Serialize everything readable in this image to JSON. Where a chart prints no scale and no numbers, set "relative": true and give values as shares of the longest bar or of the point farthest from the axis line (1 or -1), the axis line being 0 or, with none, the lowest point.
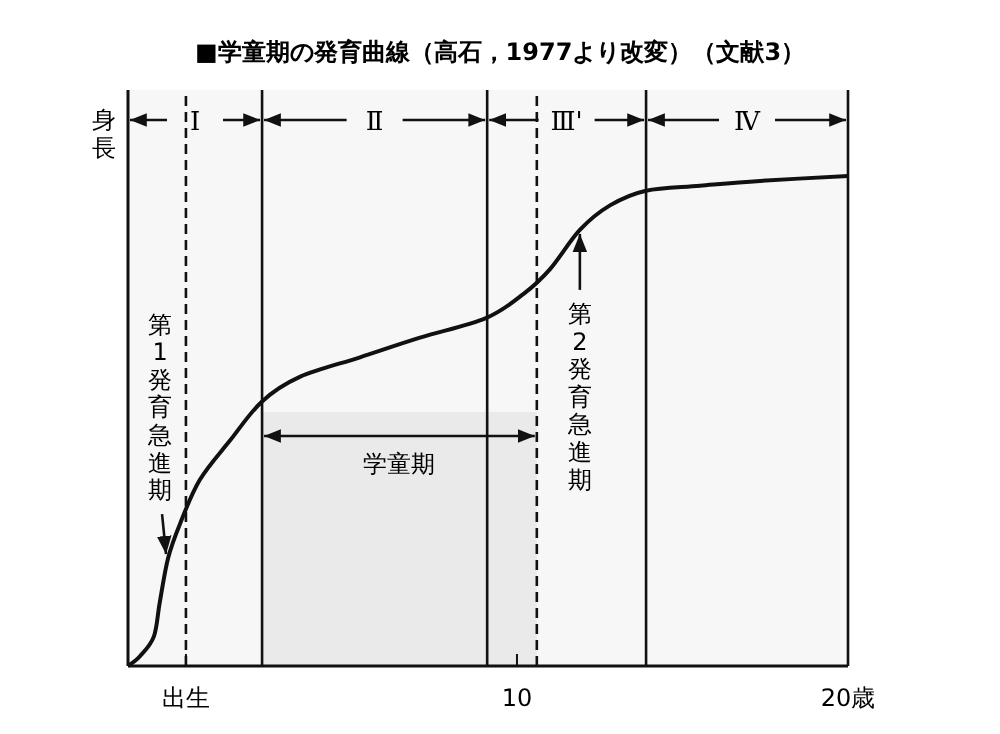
{
  "chart_data": {
    "type": "line",
    "relative": true,
    "title": "■学童期の発育曲線（高石，1977より改変）（文献3）",
    "ylabel": "身長",
    "xlim": [
      -1.75,
      20
    ],
    "xticks": [
      {
        "value": 0,
        "label": "出生"
      },
      10,
      {
        "value": 20,
        "label": "20歳"
      }
    ],
    "series": [
      {
        "color": "#111111",
        "x": [
          -1.75,
          -1.39,
          -0.97,
          -0.79,
          -0.54,
          -0.18,
          0.42,
          1.33,
          2.3,
          3.44,
          5.26,
          7.07,
          9.06,
          10.21,
          11.0,
          11.9,
          12.81,
          13.9,
          15.53,
          17.34,
          20
        ],
        "values": [
          0,
          0.02,
          0.06,
          0.13,
          0.22,
          0.29,
          0.38,
          0.46,
          0.54,
          0.59,
          0.63,
          0.67,
          0.71,
          0.76,
          0.81,
          0.89,
          0.94,
          0.97,
          0.98,
          0.99,
          1.0
        ]
      }
    ],
    "ref_lines": [
      {
        "axis": "x",
        "value": 2.3,
        "line_style": "solid"
      },
      {
        "axis": "x",
        "value": 9.1,
        "line_style": "solid"
      },
      {
        "axis": "x",
        "value": 13.9,
        "line_style": "solid"
      },
      {
        "axis": "x",
        "value": 20,
        "line_style": "solid"
      },
      {
        "axis": "x",
        "value": 0,
        "line_style": "dashed"
      },
      {
        "axis": "x",
        "value": 10.6,
        "line_style": "dashed"
      }
    ],
    "bands": [
      {
        "axis": "x",
        "from": -1.75,
        "to": 2.3,
        "label": "Ⅰ",
        "color": "#f0f0f0"
      },
      {
        "axis": "x",
        "from": 2.3,
        "to": 9.1,
        "label": "Ⅱ",
        "color": "#f0f0f0"
      },
      {
        "axis": "x",
        "from": 9.1,
        "to": 13.9,
        "label": "Ⅲ'",
        "color": "#f0f0f0"
      },
      {
        "axis": "x",
        "from": 13.9,
        "to": 20,
        "label": "Ⅳ",
        "color": "#f0f0f0"
      },
      {
        "axis": "x",
        "from": 2.3,
        "to": 10.6,
        "label": "学童期",
        "color": "#e4e4e4"
      }
    ],
    "annotations": [
      {
        "text": "第1発育急進期",
        "x": -0.54,
        "y": 0.22
      },
      {
        "text": "第2発育急進期",
        "x": 11.9,
        "y": 0.89
      }
    ],
    "grid": false,
    "marker": "none",
    "line_style": "solid"
  }
}
